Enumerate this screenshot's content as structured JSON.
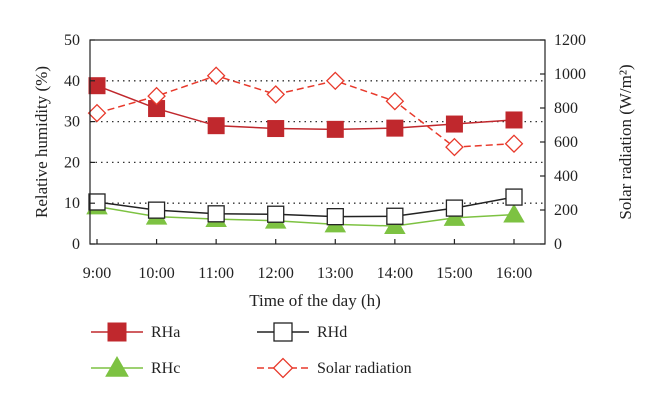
{
  "chart_data": {
    "type": "line",
    "xlabel": "Time of the day (h)",
    "ylabel": "Relative humidity (%)",
    "y2label": "Solar radiation (W/m²)",
    "categories": [
      "9:00",
      "10:00",
      "11:00",
      "12:00",
      "13:00",
      "14:00",
      "15:00",
      "16:00"
    ],
    "ylim": [
      0,
      50
    ],
    "yticks": [
      0,
      10,
      20,
      30,
      40,
      50
    ],
    "y2lim": [
      0,
      1200
    ],
    "y2ticks": [
      0,
      200,
      400,
      600,
      800,
      1000,
      1200
    ],
    "grid": "horizontal dotted at 10, 20, 30, 40",
    "legend_position": "bottom",
    "series": [
      {
        "name": "RHa",
        "axis": "left",
        "marker": "square-filled",
        "line": "solid",
        "color": "#c0282d",
        "values": [
          38.8,
          33.2,
          29.0,
          28.3,
          28.1,
          28.4,
          29.4,
          30.4
        ]
      },
      {
        "name": "RHc",
        "axis": "left",
        "marker": "triangle-filled",
        "line": "solid",
        "color": "#7dc242",
        "values": [
          9.2,
          6.7,
          6.1,
          5.7,
          4.8,
          4.4,
          6.4,
          7.2
        ]
      },
      {
        "name": "RHd",
        "axis": "left",
        "marker": "square-open",
        "line": "solid",
        "color": "#222222",
        "values": [
          10.3,
          8.3,
          7.4,
          7.3,
          6.7,
          6.8,
          8.8,
          11.5
        ]
      },
      {
        "name": "Solar radiation",
        "axis": "right",
        "marker": "diamond-open",
        "line": "dashed",
        "color": "#e8392b",
        "values": [
          770,
          870,
          990,
          880,
          960,
          840,
          570,
          590
        ]
      }
    ]
  }
}
